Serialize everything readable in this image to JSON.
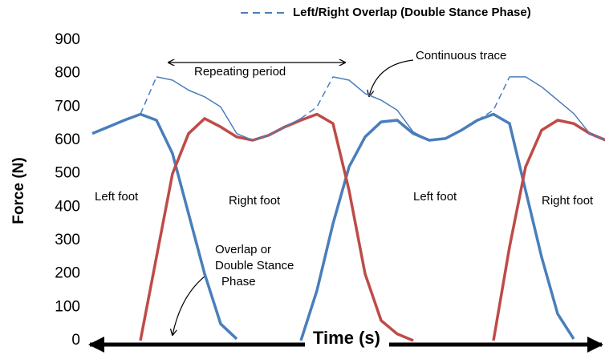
{
  "chart_data": {
    "type": "line",
    "legend_title": "Left/Right Overlap (Double Stance Phase)",
    "ylabel": "Force (N)",
    "xlabel": "Time (s)",
    "ylim": [
      0,
      900
    ],
    "yticks": [
      0,
      100,
      200,
      300,
      400,
      500,
      600,
      700,
      800,
      900
    ],
    "grid": false,
    "categories": [
      null,
      null,
      null,
      null,
      null,
      null,
      null,
      null,
      null,
      null,
      null,
      null,
      null,
      null,
      null,
      null,
      null,
      null,
      null,
      null,
      null,
      null,
      null,
      null,
      null,
      null,
      null,
      null,
      null,
      null,
      null,
      null,
      null
    ],
    "series": [
      {
        "color": "#4a7ebb",
        "width": 3.5,
        "values": [
          620,
          640,
          660,
          678,
          660,
          560,
          380,
          200,
          50,
          5,
          null,
          null,
          null,
          0,
          150,
          350,
          520,
          610,
          655,
          660,
          620,
          600,
          605,
          630,
          660,
          678,
          650,
          450,
          250,
          80,
          5,
          null,
          null
        ]
      },
      {
        "color": "#be4b48",
        "width": 3.5,
        "values": [
          null,
          null,
          null,
          0,
          250,
          500,
          620,
          665,
          640,
          610,
          600,
          615,
          640,
          660,
          678,
          650,
          450,
          200,
          60,
          20,
          0,
          null,
          null,
          null,
          null,
          0,
          280,
          520,
          630,
          660,
          650,
          620,
          600
        ]
      },
      {
        "color": "#4a7ebb",
        "width": 1.5,
        "values": [
          null,
          null,
          null,
          null,
          790,
          780,
          750,
          730,
          700,
          620,
          600,
          615,
          640,
          665,
          null,
          790,
          780,
          740,
          720,
          690,
          625,
          600,
          605,
          630,
          660,
          null,
          790,
          790,
          760,
          720,
          680,
          620,
          600
        ]
      },
      {
        "name": "Left/Right Overlap (Double Stance Phase)",
        "color": "#4a7ebb",
        "width": 1.5,
        "dashed": true,
        "values": [
          null,
          null,
          null,
          678,
          790,
          null,
          null,
          null,
          null,
          null,
          null,
          null,
          null,
          665,
          700,
          790,
          null,
          null,
          null,
          null,
          null,
          null,
          null,
          null,
          660,
          690,
          790,
          null,
          null,
          null,
          null,
          null,
          null
        ]
      }
    ],
    "annotations": [
      "Repeating period",
      "Continuous trace",
      "Left foot",
      "Right foot",
      "Left foot",
      "Right foot"
    ],
    "overlap_note": [
      "Overlap or",
      "Double Stance",
      "Phase"
    ]
  }
}
